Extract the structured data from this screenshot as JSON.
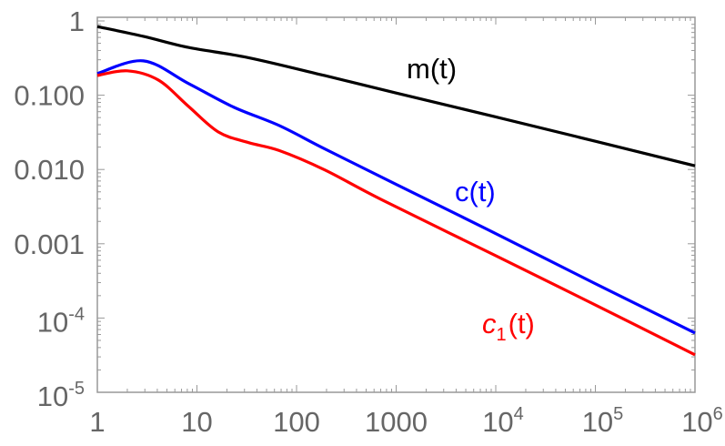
{
  "chart_data": {
    "type": "line",
    "title": "",
    "xlabel": "",
    "ylabel": "",
    "x_scale": "log",
    "y_scale": "log",
    "xlim": [
      1,
      1000000
    ],
    "ylim": [
      1e-05,
      1
    ],
    "grid": false,
    "legend": "none; series labelled inline",
    "x_ticks": [
      {
        "value": 1,
        "label": "1"
      },
      {
        "value": 10,
        "label": "10"
      },
      {
        "value": 100,
        "label": "100"
      },
      {
        "value": 1000,
        "label": "1000"
      },
      {
        "value": 10000,
        "base": "10",
        "exp": "4"
      },
      {
        "value": 100000,
        "base": "10",
        "exp": "5"
      },
      {
        "value": 1000000,
        "base": "10",
        "exp": "6"
      }
    ],
    "y_ticks": [
      {
        "value": 1,
        "label": "1"
      },
      {
        "value": 0.1,
        "label": "0.100"
      },
      {
        "value": 0.01,
        "label": "0.010"
      },
      {
        "value": 0.001,
        "label": "0.001"
      },
      {
        "value": 0.0001,
        "base": "10",
        "exp": "-4"
      },
      {
        "value": 1e-05,
        "base": "10",
        "exp": "-5"
      }
    ],
    "series": [
      {
        "name": "m(t)",
        "label_main": "m(t)",
        "color": "#000000",
        "x": [
          1,
          2.9,
          8.2,
          33,
          191,
          1000,
          10000,
          100000,
          1000000
        ],
        "y": [
          0.84,
          0.62,
          0.44,
          0.32,
          0.184,
          0.107,
          0.051,
          0.024,
          0.0112
        ]
      },
      {
        "name": "c(t)",
        "label_main": "c(t)",
        "color": "#0000ff",
        "x": [
          1,
          2.9,
          8.2,
          23.4,
          67,
          191,
          1000,
          10000,
          100000,
          1000000
        ],
        "y": [
          0.196,
          0.29,
          0.144,
          0.069,
          0.039,
          0.019,
          0.0063,
          0.00137,
          0.00029,
          6.3e-05
        ]
      },
      {
        "name": "c1(t)",
        "label_main": "c",
        "label_sub": "1",
        "label_rest": "(t)",
        "color": "#ff0000",
        "x": [
          1,
          2,
          4.1,
          8.2,
          16.4,
          33,
          67,
          191,
          720,
          10000,
          100000,
          1000000
        ],
        "y": [
          0.184,
          0.213,
          0.16,
          0.071,
          0.032,
          0.023,
          0.018,
          0.0099,
          0.0039,
          0.00069,
          0.00015,
          3.2e-05
        ]
      }
    ]
  }
}
